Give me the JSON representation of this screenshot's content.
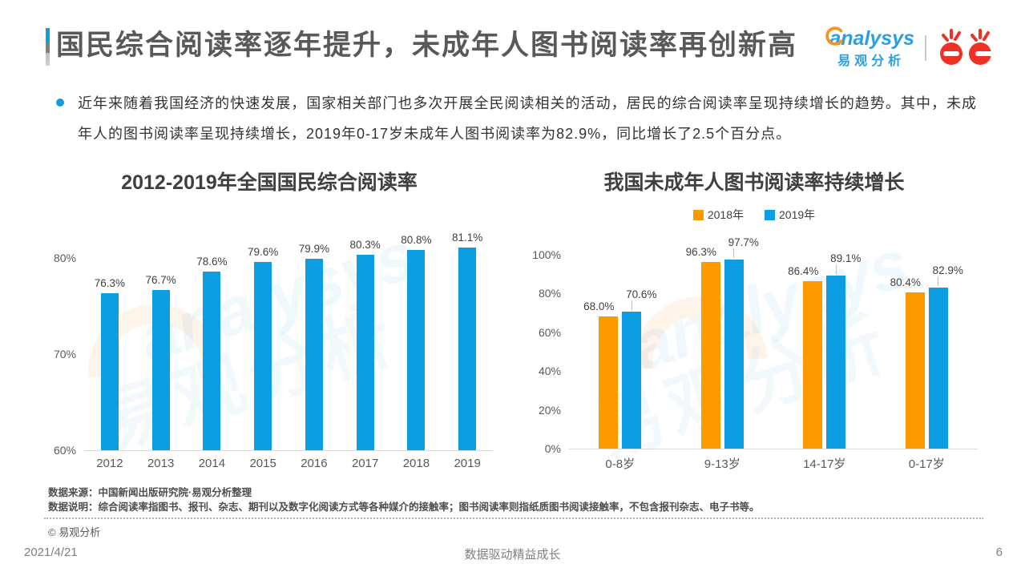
{
  "page": {
    "title": "国民综合阅读率逐年提升，未成年人图书阅读率再创新高",
    "summary": "近年来随着我国经济的快速发展，国家相关部门也多次开展全民阅读相关的活动，居民的综合阅读率呈现持续增长的趋势。其中，未成年人的图书阅读率呈现持续增长，2019年0-17岁未成年人图书阅读率为82.9%，同比增长了2.5个百分点。",
    "source_note": "数据来源：中国新闻出版研究院·易观分析整理",
    "data_note": "数据说明：综合阅读率指图书、报刊、杂志、期刊以及数字化阅读方式等各种媒介的接触率；图书阅读率则指纸质图书阅读接触率，不包含报刊杂志、电子书等。",
    "copyright": "© 易观分析",
    "date": "2021/4/21",
    "footer_slogan": "数据驱动精益成长",
    "page_number": "6"
  },
  "brand": {
    "analysys_en": "analysys",
    "analysys_cn": "易观分析",
    "dangdang_name": "当当",
    "watermark_en": "analysys",
    "watermark_cn": "易观分析"
  },
  "colors": {
    "accent_blue": "#129BE0",
    "bar_blue": "#0C9DE2",
    "bar_orange": "#FC9A00",
    "dangdang_red": "#EE3124"
  },
  "chart_data": [
    {
      "type": "bar",
      "title": "2012-2019年全国国民综合阅读率",
      "categories": [
        "2012",
        "2013",
        "2014",
        "2015",
        "2016",
        "2017",
        "2018",
        "2019"
      ],
      "values": [
        76.3,
        76.7,
        78.6,
        79.6,
        79.9,
        80.3,
        80.8,
        81.1
      ],
      "data_labels": [
        "76.3%",
        "76.7%",
        "78.6%",
        "79.6%",
        "79.9%",
        "80.3%",
        "80.8%",
        "81.1%"
      ],
      "unit": "%",
      "xlabel": "",
      "ylabel": "",
      "ylim": [
        60,
        85
      ],
      "yticks": [
        {
          "value": 60,
          "label": "60%"
        },
        {
          "value": 70,
          "label": "70%"
        },
        {
          "value": 80,
          "label": "80%"
        }
      ],
      "grid": false,
      "legend": null,
      "bar_color": "#0C9DE2"
    },
    {
      "type": "bar",
      "title": "我国未成年人图书阅读率持续增长",
      "categories": [
        "0-8岁",
        "9-13岁",
        "14-17岁",
        "0-17岁"
      ],
      "series": [
        {
          "name": "2018年",
          "color": "#FC9A00",
          "values": [
            68.0,
            96.3,
            86.4,
            80.4
          ],
          "data_labels": [
            "68.0%",
            "96.3%",
            "86.4%",
            "80.4%"
          ]
        },
        {
          "name": "2019年",
          "color": "#0C9DE2",
          "values": [
            70.6,
            97.7,
            89.1,
            82.9
          ],
          "data_labels": [
            "70.6%",
            "97.7%",
            "89.1%",
            "82.9%"
          ]
        }
      ],
      "unit": "%",
      "xlabel": "",
      "ylabel": "",
      "ylim": [
        0,
        105
      ],
      "yticks": [
        {
          "value": 0,
          "label": "0%"
        },
        {
          "value": 20,
          "label": "20%"
        },
        {
          "value": 40,
          "label": "40%"
        },
        {
          "value": 60,
          "label": "60%"
        },
        {
          "value": 80,
          "label": "80%"
        },
        {
          "value": 100,
          "label": "100%"
        }
      ],
      "grid": false,
      "legend_position": "top"
    }
  ]
}
